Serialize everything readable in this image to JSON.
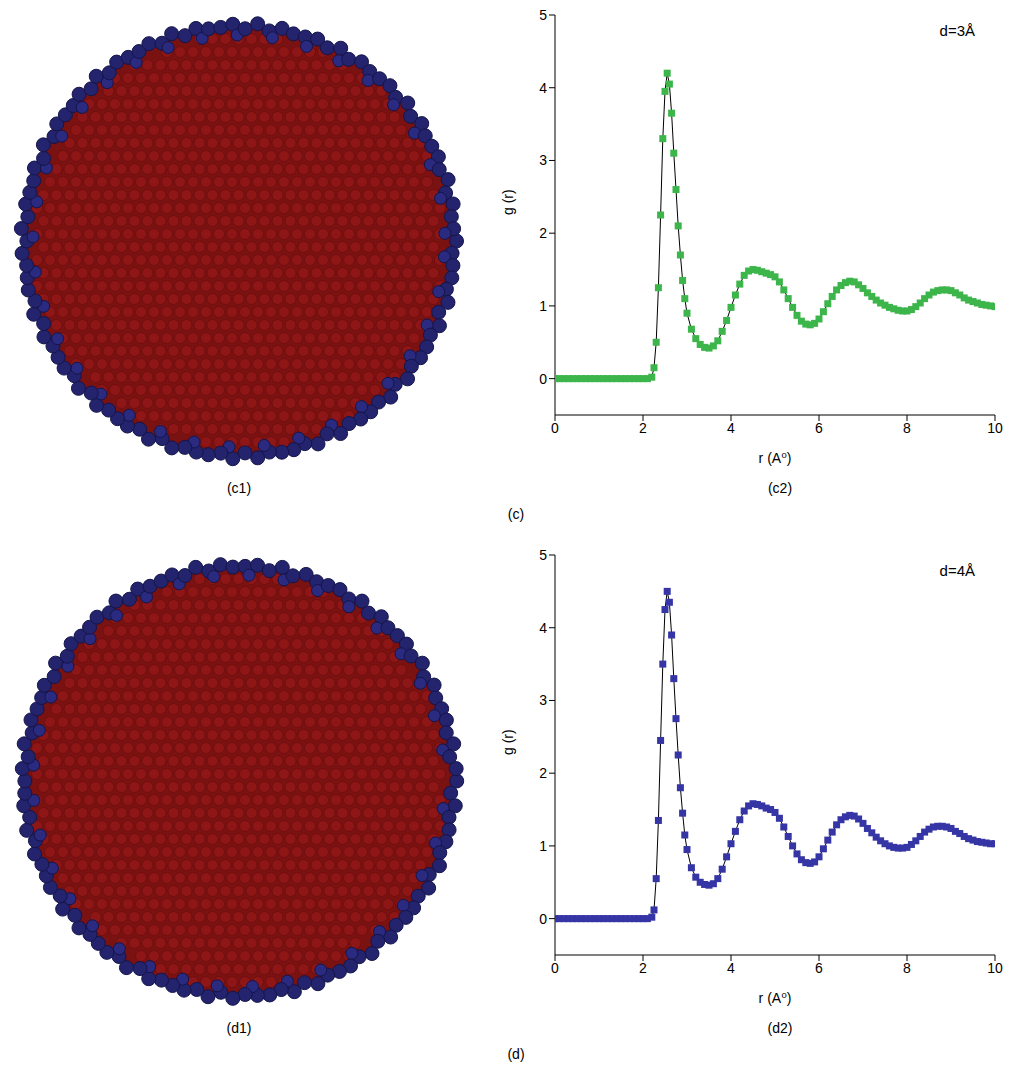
{
  "chart_data": [
    {
      "type": "line",
      "group_label": "(c)",
      "image_label": "(c1)",
      "panel_label": "(c2)",
      "annotation": "d=3Å",
      "x_label": "r (A⁰)",
      "y_label": "g (r)",
      "xlim": [
        0,
        10
      ],
      "xticks": [
        0,
        2,
        4,
        6,
        8,
        10
      ],
      "ylim": [
        -0.5,
        5
      ],
      "yticks": [
        0,
        1,
        2,
        3,
        4,
        5
      ],
      "color": "#3cb54a",
      "marker": "square",
      "x": [
        0,
        0.1,
        0.2,
        0.3,
        0.4,
        0.5,
        0.6,
        0.7,
        0.8,
        0.9,
        1.0,
        1.1,
        1.2,
        1.3,
        1.4,
        1.5,
        1.6,
        1.7,
        1.8,
        1.9,
        2.0,
        2.1,
        2.2,
        2.25,
        2.3,
        2.35,
        2.4,
        2.45,
        2.5,
        2.55,
        2.6,
        2.65,
        2.7,
        2.75,
        2.8,
        2.85,
        2.9,
        2.95,
        3.0,
        3.1,
        3.2,
        3.3,
        3.4,
        3.5,
        3.6,
        3.7,
        3.8,
        3.9,
        4.0,
        4.1,
        4.2,
        4.3,
        4.4,
        4.5,
        4.6,
        4.7,
        4.8,
        4.9,
        5.0,
        5.1,
        5.2,
        5.3,
        5.4,
        5.5,
        5.6,
        5.7,
        5.8,
        5.9,
        6.0,
        6.1,
        6.2,
        6.3,
        6.4,
        6.5,
        6.6,
        6.7,
        6.8,
        6.9,
        7.0,
        7.1,
        7.2,
        7.3,
        7.4,
        7.5,
        7.6,
        7.7,
        7.8,
        7.9,
        8.0,
        8.1,
        8.2,
        8.3,
        8.4,
        8.5,
        8.6,
        8.7,
        8.8,
        8.9,
        9.0,
        9.1,
        9.2,
        9.3,
        9.4,
        9.5,
        9.6,
        9.7,
        9.8,
        9.9,
        10.0
      ],
      "values": [
        0,
        0,
        0,
        0,
        0,
        0,
        0,
        0,
        0,
        0,
        0,
        0,
        0,
        0,
        0,
        0,
        0,
        0,
        0,
        0,
        0,
        0,
        0.02,
        0.15,
        0.5,
        1.25,
        2.25,
        3.3,
        3.95,
        4.2,
        4.05,
        3.65,
        3.1,
        2.6,
        2.1,
        1.7,
        1.35,
        1.1,
        0.9,
        0.68,
        0.55,
        0.47,
        0.43,
        0.42,
        0.45,
        0.52,
        0.65,
        0.8,
        0.98,
        1.15,
        1.3,
        1.42,
        1.48,
        1.5,
        1.49,
        1.47,
        1.45,
        1.43,
        1.4,
        1.33,
        1.22,
        1.1,
        0.98,
        0.87,
        0.79,
        0.75,
        0.74,
        0.76,
        0.82,
        0.92,
        1.03,
        1.13,
        1.22,
        1.28,
        1.32,
        1.34,
        1.33,
        1.29,
        1.24,
        1.18,
        1.13,
        1.08,
        1.04,
        1.01,
        0.98,
        0.96,
        0.94,
        0.93,
        0.93,
        0.95,
        0.99,
        1.04,
        1.1,
        1.15,
        1.19,
        1.21,
        1.22,
        1.22,
        1.21,
        1.18,
        1.15,
        1.11,
        1.08,
        1.06,
        1.04,
        1.02,
        1.01,
        1.0,
        0.99
      ]
    },
    {
      "type": "line",
      "group_label": "(d)",
      "image_label": "(d1)",
      "panel_label": "(d2)",
      "annotation": "d=4Å",
      "x_label": "r (A⁰)",
      "y_label": "g (r)",
      "xlim": [
        0,
        10
      ],
      "xticks": [
        0,
        2,
        4,
        6,
        8,
        10
      ],
      "ylim": [
        -0.5,
        5
      ],
      "yticks": [
        0,
        1,
        2,
        3,
        4,
        5
      ],
      "color": "#3535a6",
      "marker": "square",
      "x": [
        0,
        0.1,
        0.2,
        0.3,
        0.4,
        0.5,
        0.6,
        0.7,
        0.8,
        0.9,
        1.0,
        1.1,
        1.2,
        1.3,
        1.4,
        1.5,
        1.6,
        1.7,
        1.8,
        1.9,
        2.0,
        2.1,
        2.2,
        2.25,
        2.3,
        2.35,
        2.4,
        2.45,
        2.5,
        2.55,
        2.6,
        2.65,
        2.7,
        2.75,
        2.8,
        2.85,
        2.9,
        2.95,
        3.0,
        3.1,
        3.2,
        3.3,
        3.4,
        3.5,
        3.6,
        3.7,
        3.8,
        3.9,
        4.0,
        4.1,
        4.2,
        4.3,
        4.4,
        4.5,
        4.6,
        4.7,
        4.8,
        4.9,
        5.0,
        5.1,
        5.2,
        5.3,
        5.4,
        5.5,
        5.6,
        5.7,
        5.8,
        5.9,
        6.0,
        6.1,
        6.2,
        6.3,
        6.4,
        6.5,
        6.6,
        6.7,
        6.8,
        6.9,
        7.0,
        7.1,
        7.2,
        7.3,
        7.4,
        7.5,
        7.6,
        7.7,
        7.8,
        7.9,
        8.0,
        8.1,
        8.2,
        8.3,
        8.4,
        8.5,
        8.6,
        8.7,
        8.8,
        8.9,
        9.0,
        9.1,
        9.2,
        9.3,
        9.4,
        9.5,
        9.6,
        9.7,
        9.8,
        9.9,
        10.0
      ],
      "values": [
        0,
        0,
        0,
        0,
        0,
        0,
        0,
        0,
        0,
        0,
        0,
        0,
        0,
        0,
        0,
        0,
        0,
        0,
        0,
        0,
        0,
        0,
        0.02,
        0.12,
        0.55,
        1.35,
        2.45,
        3.5,
        4.25,
        4.5,
        4.35,
        3.9,
        3.3,
        2.75,
        2.25,
        1.8,
        1.45,
        1.15,
        0.95,
        0.7,
        0.57,
        0.5,
        0.47,
        0.46,
        0.48,
        0.55,
        0.68,
        0.85,
        1.03,
        1.2,
        1.36,
        1.48,
        1.55,
        1.58,
        1.57,
        1.55,
        1.52,
        1.5,
        1.46,
        1.38,
        1.26,
        1.13,
        1.0,
        0.89,
        0.81,
        0.77,
        0.76,
        0.78,
        0.85,
        0.96,
        1.08,
        1.19,
        1.29,
        1.36,
        1.4,
        1.42,
        1.41,
        1.37,
        1.31,
        1.24,
        1.18,
        1.12,
        1.07,
        1.03,
        1.0,
        0.98,
        0.97,
        0.97,
        0.98,
        1.02,
        1.07,
        1.13,
        1.19,
        1.23,
        1.26,
        1.27,
        1.27,
        1.26,
        1.24,
        1.2,
        1.17,
        1.13,
        1.1,
        1.08,
        1.06,
        1.05,
        1.04,
        1.03,
        1.03
      ]
    }
  ]
}
